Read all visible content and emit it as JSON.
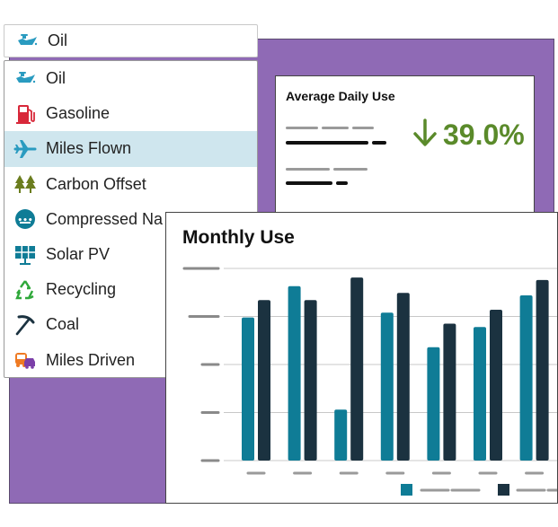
{
  "colors": {
    "purple": "#8f6ab5",
    "teal": "#0f7c96",
    "navy": "#1b3240",
    "green": "#5a8a2a",
    "selected_bg": "#cfe6ee"
  },
  "select": {
    "value": "Oil",
    "icon": "oil-can-icon"
  },
  "dropdown": {
    "items": [
      {
        "label": "Oil",
        "icon": "oil-can-icon"
      },
      {
        "label": "Gasoline",
        "icon": "gas-pump-icon"
      },
      {
        "label": "Miles Flown",
        "icon": "airplane-icon",
        "selected": true
      },
      {
        "label": "Carbon Offset",
        "icon": "trees-icon"
      },
      {
        "label": "Compressed Na",
        "icon": "compressed-gas-icon"
      },
      {
        "label": "Solar PV",
        "icon": "solar-panel-icon"
      },
      {
        "label": "Recycling",
        "icon": "recycling-icon"
      },
      {
        "label": "Coal",
        "icon": "pickaxe-icon"
      },
      {
        "label": "Miles Driven",
        "icon": "vehicles-icon"
      }
    ]
  },
  "average_card": {
    "title": "Average Daily Use",
    "change": "39.0%",
    "direction": "down"
  },
  "chart_card": {
    "title": "Monthly Use"
  },
  "chart_data": {
    "type": "bar",
    "title": "Monthly Use",
    "categories": [
      "",
      "",
      "",
      "",
      "",
      "",
      "",
      ""
    ],
    "ylim": [
      0,
      4
    ],
    "grid": true,
    "legend": "bottom-right",
    "series": [
      {
        "color": "#0f7c96",
        "values": [
          2.98,
          3.63,
          1.06,
          3.08,
          2.36,
          2.78,
          3.44,
          0
        ]
      },
      {
        "color": "#1b3240",
        "values": [
          3.34,
          3.34,
          3.81,
          3.49,
          2.85,
          3.14,
          3.76,
          0
        ]
      }
    ]
  }
}
